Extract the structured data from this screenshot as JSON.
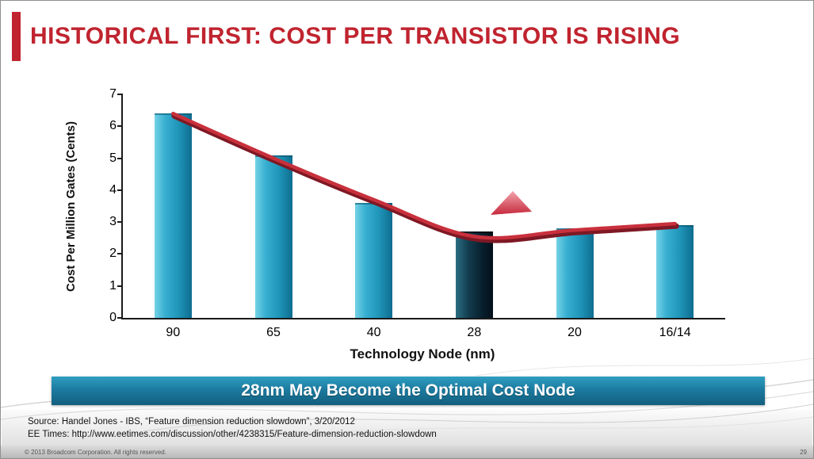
{
  "slide": {
    "title": "HISTORICAL FIRST: COST PER TRANSISTOR IS RISING",
    "accent_color": "#c0242f",
    "banner_text": "28nm May Become the Optimal Cost Node",
    "source_line1": "Source: Handel Jones - IBS, “Feature dimension reduction slowdown”, 3/20/2012",
    "source_line2": "EE Times:  http://www.eetimes.com/discussion/other/4238315/Feature-dimension-reduction-slowdown",
    "footer_copyright": "© 2013 Broadcom Corporation.  All rights reserved.",
    "page_number": "29"
  },
  "chart_data": {
    "type": "bar",
    "title": "",
    "categories": [
      "90",
      "65",
      "40",
      "28",
      "20",
      "16/14"
    ],
    "values": [
      6.4,
      5.1,
      3.6,
      2.7,
      2.8,
      2.9
    ],
    "series": [
      {
        "name": "cost-per-million-gates-bars",
        "values": [
          6.4,
          5.1,
          3.6,
          2.7,
          2.8,
          2.9
        ]
      },
      {
        "name": "cost-trend-line",
        "values": [
          6.4,
          5.0,
          3.7,
          2.55,
          2.75,
          2.95
        ]
      }
    ],
    "highlight_category": "28",
    "annotation": "upward-arrow near 28nm node",
    "xlabel": "Technology Node (nm)",
    "ylabel": "Cost Per Million Gates (Cents)",
    "ylim": [
      0,
      7
    ],
    "yticks": [
      0,
      1,
      2,
      3,
      4,
      5,
      6,
      7
    ],
    "grid": false,
    "legend": "none",
    "colors": {
      "bar": "#2aa5c9",
      "bar_highlight": "#0a2a38",
      "trend_line": "#c8303c",
      "trend_line_shadow": "#7e1824",
      "annotation_arrow": "#d63a4a"
    }
  }
}
